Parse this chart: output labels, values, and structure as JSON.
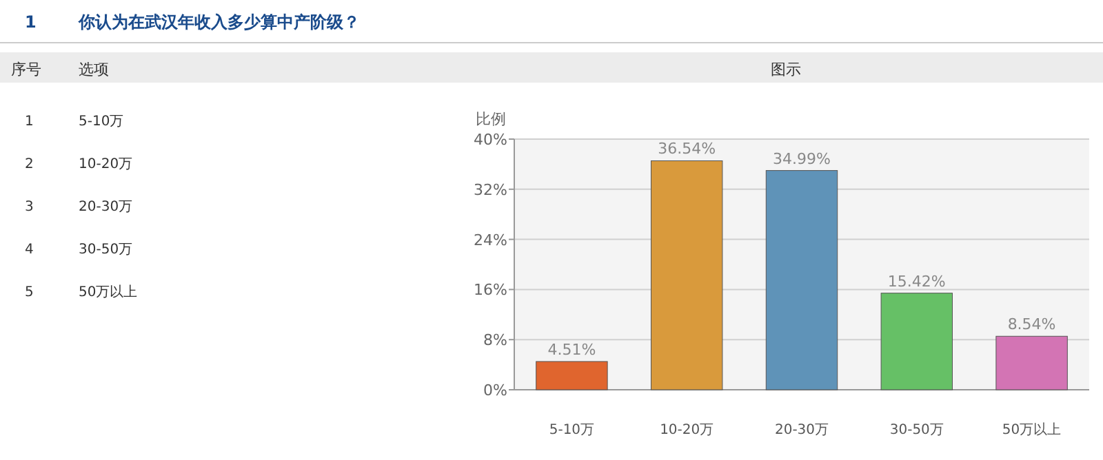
{
  "chart_data": {
    "type": "bar",
    "title": "你认为在武汉年收入多少算中产阶级？",
    "ylabel": "比例",
    "annotations": [
      "1",
      "序号",
      "选项",
      "图示",
      "1",
      "5-10万",
      "2",
      "10-20万",
      "3",
      "20-30万",
      "4",
      "30-50万",
      "5",
      "50万以上"
    ],
    "categories": [
      "5-10万",
      "10-20万",
      "20-30万",
      "30-50万",
      "50万以上"
    ],
    "values": [
      4.51,
      36.54,
      34.99,
      15.42,
      8.54
    ],
    "value_labels": [
      "4.51%",
      "36.54%",
      "34.99%",
      "15.42%",
      "8.54%"
    ],
    "colors": [
      "#e0652e",
      "#d99a3c",
      "#5f93b8",
      "#66c066",
      "#d374b4"
    ],
    "ylim": [
      0,
      40
    ],
    "yticks": [
      {
        "value": 0,
        "label": "0%"
      },
      {
        "value": 8,
        "label": "8%"
      },
      {
        "value": 16,
        "label": "16%"
      },
      {
        "value": 24,
        "label": "24%"
      },
      {
        "value": 32,
        "label": "32%"
      },
      {
        "value": 40,
        "label": "40%"
      }
    ],
    "grid": "y"
  }
}
